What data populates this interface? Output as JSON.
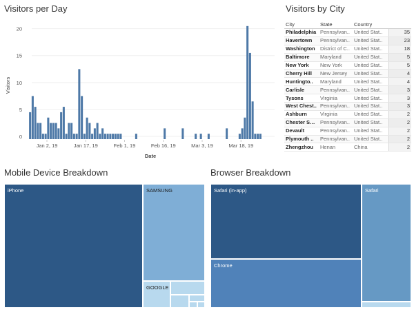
{
  "titles": {
    "visitors_per_day": "Visitors per Day",
    "visitors_by_city": "Visitors by City",
    "mobile_breakdown": "Mobile Device Breakdown",
    "browser_breakdown": "Browser Breakdown"
  },
  "colors": {
    "bar": "#4e79a7",
    "dark_blue": "#2d5886",
    "mid_blue": "#5082b9",
    "light_blue": "#7faed6",
    "pale_blue": "#b8d9ee"
  },
  "chart_data": [
    {
      "type": "bar",
      "title": "Visitors per Day",
      "xlabel": "Date",
      "ylabel": "Visitors",
      "ylim": [
        0,
        22
      ],
      "yticks": [
        0,
        5,
        10,
        15,
        20
      ],
      "x_start": "2018-12-25",
      "x_end": "2019-03-31",
      "xtick_labels": [
        {
          "date": "2019-01-02",
          "label": "Jan 2, 19"
        },
        {
          "date": "2019-01-17",
          "label": "Jan 17, 19"
        },
        {
          "date": "2019-02-01",
          "label": "Feb 1, 19"
        },
        {
          "date": "2019-02-16",
          "label": "Feb 16, 19"
        },
        {
          "date": "2019-03-03",
          "label": "Mar 3, 19"
        },
        {
          "date": "2019-03-18",
          "label": "Mar 18, 19"
        }
      ],
      "x": [
        "2018-12-26",
        "2018-12-27",
        "2018-12-28",
        "2018-12-29",
        "2018-12-30",
        "2018-12-31",
        "2019-01-01",
        "2019-01-02",
        "2019-01-03",
        "2019-01-04",
        "2019-01-05",
        "2019-01-06",
        "2019-01-07",
        "2019-01-08",
        "2019-01-09",
        "2019-01-10",
        "2019-01-11",
        "2019-01-12",
        "2019-01-13",
        "2019-01-14",
        "2019-01-15",
        "2019-01-16",
        "2019-01-17",
        "2019-01-18",
        "2019-01-19",
        "2019-01-20",
        "2019-01-21",
        "2019-01-22",
        "2019-01-23",
        "2019-01-24",
        "2019-01-25",
        "2019-01-26",
        "2019-01-27",
        "2019-01-28",
        "2019-01-29",
        "2019-01-30",
        "2019-02-05",
        "2019-02-16",
        "2019-02-23",
        "2019-02-28",
        "2019-03-02",
        "2019-03-05",
        "2019-03-12",
        "2019-03-17",
        "2019-03-18",
        "2019-03-19",
        "2019-03-20",
        "2019-03-21",
        "2019-03-22",
        "2019-03-23",
        "2019-03-24",
        "2019-03-25"
      ],
      "values": [
        5,
        8,
        6,
        3,
        3,
        1,
        1,
        4,
        3,
        3,
        3,
        2,
        5,
        6,
        1,
        3,
        3,
        1,
        1,
        13,
        8,
        1,
        4,
        3,
        1,
        2,
        3,
        1,
        2,
        1,
        1,
        1,
        1,
        1,
        1,
        1,
        1,
        2,
        2,
        1,
        1,
        1,
        2,
        1,
        2,
        4,
        21,
        16,
        7,
        1,
        1,
        1
      ]
    },
    {
      "type": "table",
      "title": "Visitors by City",
      "columns": [
        "City",
        "State",
        "Country",
        ""
      ],
      "rows": [
        [
          "Philadelphia",
          "Pennsylvan..",
          "United Stat..",
          35
        ],
        [
          "Havertown",
          "Pennsylvan..",
          "United Stat..",
          23
        ],
        [
          "Washington",
          "District of C..",
          "United Stat..",
          18
        ],
        [
          "Baltimore",
          "Maryland",
          "United Stat..",
          5
        ],
        [
          "New York",
          "New York",
          "United Stat..",
          5
        ],
        [
          "Cherry Hill",
          "New Jersey",
          "United Stat..",
          4
        ],
        [
          "Huntingto..",
          "Maryland",
          "United Stat..",
          4
        ],
        [
          "Carlisle",
          "Pennsylvan..",
          "United Stat..",
          3
        ],
        [
          "Tysons",
          "Virginia",
          "United Stat..",
          3
        ],
        [
          "West Chest..",
          "Pennsylvan..",
          "United Stat..",
          3
        ],
        [
          "Ashburn",
          "Virginia",
          "United Stat..",
          2
        ],
        [
          "Chester Spr..",
          "Pennsylvan..",
          "United Stat..",
          2
        ],
        [
          "Devault",
          "Pennsylvan..",
          "United Stat..",
          2
        ],
        [
          "Plymouth ..",
          "Pennsylvan..",
          "United Stat..",
          2
        ],
        [
          "Zhengzhou",
          "Henan",
          "China",
          2
        ]
      ]
    }
  ],
  "mobile_treemap": {
    "tiles": [
      {
        "label": "iPhone",
        "color": "#2d5886",
        "dark": false
      },
      {
        "label": "SAMSUNG",
        "color": "#7faed6",
        "dark": true
      },
      {
        "label": "GOOGLE",
        "color": "#b8d9ee",
        "dark": true
      },
      {
        "label": "",
        "color": "#b8d9ee",
        "dark": true
      },
      {
        "label": "",
        "color": "#b8d9ee",
        "dark": true
      },
      {
        "label": "",
        "color": "#b8d9ee",
        "dark": true
      },
      {
        "label": "",
        "color": "#b8d9ee",
        "dark": true
      },
      {
        "label": "",
        "color": "#b8d9ee",
        "dark": true
      }
    ]
  },
  "browser_treemap": {
    "tiles": [
      {
        "label": "Safari (in-app)",
        "color": "#2d5886",
        "dark": false
      },
      {
        "label": "Chrome",
        "color": "#5082b9",
        "dark": false
      },
      {
        "label": "Safari",
        "color": "#6699c4",
        "dark": false
      },
      {
        "label": "",
        "color": "#b8d9ee",
        "dark": true
      }
    ]
  }
}
